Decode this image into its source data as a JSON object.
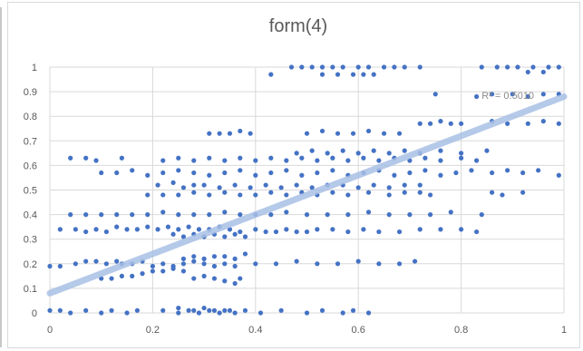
{
  "chart_data": {
    "type": "scatter",
    "title": "form(4)",
    "xlabel": "",
    "ylabel": "",
    "xlim": [
      0,
      1
    ],
    "ylim": [
      0,
      1
    ],
    "x_ticks": [
      "0",
      "0.2",
      "0.4",
      "0.6",
      "0.8",
      "1"
    ],
    "y_ticks": [
      "0",
      "0.1",
      "0.2",
      "0.3",
      "0.4",
      "0.5",
      "0.6",
      "0.7",
      "0.8",
      "0.9",
      "1"
    ],
    "grid": true,
    "legend": "none",
    "point_color": "#4472c4",
    "trendline": {
      "type": "linear",
      "color": "#a9c0e6",
      "start": [
        0,
        0.08
      ],
      "end": [
        1,
        0.88
      ],
      "label": "R² = 0.5010"
    },
    "series": [
      {
        "points": [
          [
            0.0,
            0.01
          ],
          [
            0.02,
            0.01
          ],
          [
            0.04,
            0.0
          ],
          [
            0.07,
            0.01
          ],
          [
            0.1,
            0.0
          ],
          [
            0.12,
            0.01
          ],
          [
            0.15,
            0.0
          ],
          [
            0.17,
            0.01
          ],
          [
            0.22,
            0.01
          ],
          [
            0.25,
            0.0
          ],
          [
            0.28,
            0.01
          ],
          [
            0.3,
            0.02
          ],
          [
            0.32,
            0.01
          ],
          [
            0.34,
            0.01
          ],
          [
            0.36,
            0.0
          ],
          [
            0.38,
            0.01
          ],
          [
            0.41,
            0.0
          ],
          [
            0.45,
            0.01
          ],
          [
            0.5,
            0.0
          ],
          [
            0.53,
            0.01
          ],
          [
            0.57,
            0.0
          ],
          [
            0.59,
            0.01
          ],
          [
            0.62,
            0.0
          ],
          [
            0.25,
            0.02
          ],
          [
            0.27,
            0.01
          ],
          [
            0.29,
            0.0
          ],
          [
            0.31,
            0.01
          ],
          [
            0.33,
            0.0
          ],
          [
            0.35,
            0.01
          ],
          [
            0.0,
            0.19
          ],
          [
            0.02,
            0.19
          ],
          [
            0.05,
            0.2
          ],
          [
            0.07,
            0.21
          ],
          [
            0.09,
            0.21
          ],
          [
            0.11,
            0.2
          ],
          [
            0.13,
            0.21
          ],
          [
            0.14,
            0.2
          ],
          [
            0.16,
            0.2
          ],
          [
            0.18,
            0.21
          ],
          [
            0.2,
            0.19
          ],
          [
            0.22,
            0.2
          ],
          [
            0.24,
            0.19
          ],
          [
            0.26,
            0.2
          ],
          [
            0.28,
            0.21
          ],
          [
            0.3,
            0.2
          ],
          [
            0.32,
            0.19
          ],
          [
            0.34,
            0.2
          ],
          [
            0.36,
            0.19
          ],
          [
            0.4,
            0.2
          ],
          [
            0.44,
            0.2
          ],
          [
            0.48,
            0.21
          ],
          [
            0.52,
            0.2
          ],
          [
            0.56,
            0.2
          ],
          [
            0.6,
            0.21
          ],
          [
            0.64,
            0.2
          ],
          [
            0.68,
            0.2
          ],
          [
            0.71,
            0.21
          ],
          [
            0.1,
            0.14
          ],
          [
            0.12,
            0.14
          ],
          [
            0.14,
            0.15
          ],
          [
            0.16,
            0.15
          ],
          [
            0.18,
            0.16
          ],
          [
            0.2,
            0.17
          ],
          [
            0.22,
            0.17
          ],
          [
            0.24,
            0.18
          ],
          [
            0.26,
            0.17
          ],
          [
            0.28,
            0.14
          ],
          [
            0.3,
            0.15
          ],
          [
            0.32,
            0.14
          ],
          [
            0.34,
            0.13
          ],
          [
            0.36,
            0.12
          ],
          [
            0.37,
            0.14
          ],
          [
            0.26,
            0.22
          ],
          [
            0.28,
            0.23
          ],
          [
            0.3,
            0.22
          ],
          [
            0.32,
            0.23
          ],
          [
            0.34,
            0.23
          ],
          [
            0.36,
            0.22
          ],
          [
            0.38,
            0.24
          ],
          [
            0.02,
            0.34
          ],
          [
            0.05,
            0.34
          ],
          [
            0.07,
            0.33
          ],
          [
            0.09,
            0.34
          ],
          [
            0.11,
            0.33
          ],
          [
            0.13,
            0.35
          ],
          [
            0.15,
            0.34
          ],
          [
            0.17,
            0.34
          ],
          [
            0.19,
            0.35
          ],
          [
            0.21,
            0.34
          ],
          [
            0.23,
            0.35
          ],
          [
            0.25,
            0.34
          ],
          [
            0.27,
            0.35
          ],
          [
            0.29,
            0.34
          ],
          [
            0.31,
            0.34
          ],
          [
            0.33,
            0.35
          ],
          [
            0.35,
            0.34
          ],
          [
            0.37,
            0.33
          ],
          [
            0.4,
            0.34
          ],
          [
            0.42,
            0.33
          ],
          [
            0.44,
            0.33
          ],
          [
            0.46,
            0.34
          ],
          [
            0.48,
            0.33
          ],
          [
            0.5,
            0.33
          ],
          [
            0.52,
            0.34
          ],
          [
            0.55,
            0.34
          ],
          [
            0.58,
            0.33
          ],
          [
            0.61,
            0.34
          ],
          [
            0.64,
            0.33
          ],
          [
            0.68,
            0.33
          ],
          [
            0.72,
            0.34
          ],
          [
            0.76,
            0.34
          ],
          [
            0.8,
            0.34
          ],
          [
            0.83,
            0.33
          ],
          [
            0.24,
            0.32
          ],
          [
            0.26,
            0.31
          ],
          [
            0.28,
            0.32
          ],
          [
            0.3,
            0.31
          ],
          [
            0.32,
            0.32
          ],
          [
            0.34,
            0.31
          ],
          [
            0.36,
            0.32
          ],
          [
            0.38,
            0.31
          ],
          [
            0.04,
            0.4
          ],
          [
            0.07,
            0.4
          ],
          [
            0.1,
            0.4
          ],
          [
            0.13,
            0.4
          ],
          [
            0.16,
            0.4
          ],
          [
            0.19,
            0.4
          ],
          [
            0.22,
            0.41
          ],
          [
            0.25,
            0.4
          ],
          [
            0.28,
            0.4
          ],
          [
            0.31,
            0.4
          ],
          [
            0.34,
            0.41
          ],
          [
            0.37,
            0.4
          ],
          [
            0.4,
            0.4
          ],
          [
            0.43,
            0.4
          ],
          [
            0.46,
            0.41
          ],
          [
            0.5,
            0.4
          ],
          [
            0.54,
            0.4
          ],
          [
            0.58,
            0.4
          ],
          [
            0.62,
            0.41
          ],
          [
            0.66,
            0.4
          ],
          [
            0.7,
            0.4
          ],
          [
            0.74,
            0.4
          ],
          [
            0.78,
            0.41
          ],
          [
            0.84,
            0.4
          ],
          [
            0.19,
            0.48
          ],
          [
            0.22,
            0.48
          ],
          [
            0.25,
            0.48
          ],
          [
            0.28,
            0.49
          ],
          [
            0.31,
            0.48
          ],
          [
            0.34,
            0.49
          ],
          [
            0.37,
            0.48
          ],
          [
            0.4,
            0.48
          ],
          [
            0.43,
            0.49
          ],
          [
            0.46,
            0.48
          ],
          [
            0.49,
            0.49
          ],
          [
            0.52,
            0.48
          ],
          [
            0.55,
            0.49
          ],
          [
            0.58,
            0.48
          ],
          [
            0.62,
            0.49
          ],
          [
            0.66,
            0.48
          ],
          [
            0.69,
            0.49
          ],
          [
            0.72,
            0.49
          ],
          [
            0.74,
            0.48
          ],
          [
            0.86,
            0.49
          ],
          [
            0.88,
            0.48
          ],
          [
            0.92,
            0.49
          ],
          [
            0.21,
            0.52
          ],
          [
            0.24,
            0.53
          ],
          [
            0.26,
            0.51
          ],
          [
            0.28,
            0.52
          ],
          [
            0.3,
            0.52
          ],
          [
            0.33,
            0.51
          ],
          [
            0.36,
            0.52
          ],
          [
            0.39,
            0.51
          ],
          [
            0.42,
            0.52
          ],
          [
            0.45,
            0.51
          ],
          [
            0.48,
            0.52
          ],
          [
            0.51,
            0.51
          ],
          [
            0.54,
            0.52
          ],
          [
            0.57,
            0.52
          ],
          [
            0.6,
            0.51
          ],
          [
            0.63,
            0.52
          ],
          [
            0.66,
            0.51
          ],
          [
            0.69,
            0.52
          ],
          [
            0.72,
            0.52
          ],
          [
            0.1,
            0.57
          ],
          [
            0.13,
            0.57
          ],
          [
            0.16,
            0.58
          ],
          [
            0.19,
            0.56
          ],
          [
            0.22,
            0.57
          ],
          [
            0.25,
            0.58
          ],
          [
            0.28,
            0.57
          ],
          [
            0.31,
            0.56
          ],
          [
            0.34,
            0.57
          ],
          [
            0.37,
            0.58
          ],
          [
            0.4,
            0.56
          ],
          [
            0.43,
            0.57
          ],
          [
            0.46,
            0.58
          ],
          [
            0.49,
            0.56
          ],
          [
            0.52,
            0.57
          ],
          [
            0.55,
            0.58
          ],
          [
            0.58,
            0.56
          ],
          [
            0.61,
            0.57
          ],
          [
            0.64,
            0.58
          ],
          [
            0.67,
            0.56
          ],
          [
            0.7,
            0.57
          ],
          [
            0.73,
            0.58
          ],
          [
            0.76,
            0.56
          ],
          [
            0.79,
            0.57
          ],
          [
            0.82,
            0.58
          ],
          [
            0.86,
            0.57
          ],
          [
            0.89,
            0.58
          ],
          [
            0.92,
            0.57
          ],
          [
            0.95,
            0.58
          ],
          [
            0.99,
            0.56
          ],
          [
            0.04,
            0.63
          ],
          [
            0.07,
            0.63
          ],
          [
            0.09,
            0.62
          ],
          [
            0.14,
            0.63
          ],
          [
            0.22,
            0.62
          ],
          [
            0.25,
            0.63
          ],
          [
            0.28,
            0.62
          ],
          [
            0.31,
            0.63
          ],
          [
            0.34,
            0.62
          ],
          [
            0.37,
            0.63
          ],
          [
            0.4,
            0.62
          ],
          [
            0.43,
            0.63
          ],
          [
            0.46,
            0.62
          ],
          [
            0.49,
            0.63
          ],
          [
            0.52,
            0.62
          ],
          [
            0.55,
            0.63
          ],
          [
            0.58,
            0.62
          ],
          [
            0.61,
            0.63
          ],
          [
            0.64,
            0.62
          ],
          [
            0.67,
            0.63
          ],
          [
            0.7,
            0.62
          ],
          [
            0.73,
            0.63
          ],
          [
            0.76,
            0.62
          ],
          [
            0.8,
            0.63
          ],
          [
            0.83,
            0.62
          ],
          [
            0.48,
            0.65
          ],
          [
            0.51,
            0.66
          ],
          [
            0.54,
            0.65
          ],
          [
            0.57,
            0.66
          ],
          [
            0.6,
            0.65
          ],
          [
            0.63,
            0.66
          ],
          [
            0.66,
            0.65
          ],
          [
            0.69,
            0.66
          ],
          [
            0.72,
            0.65
          ],
          [
            0.76,
            0.66
          ],
          [
            0.8,
            0.65
          ],
          [
            0.85,
            0.66
          ],
          [
            0.31,
            0.73
          ],
          [
            0.33,
            0.73
          ],
          [
            0.35,
            0.73
          ],
          [
            0.37,
            0.74
          ],
          [
            0.39,
            0.73
          ],
          [
            0.5,
            0.73
          ],
          [
            0.53,
            0.74
          ],
          [
            0.56,
            0.73
          ],
          [
            0.59,
            0.73
          ],
          [
            0.62,
            0.74
          ],
          [
            0.65,
            0.73
          ],
          [
            0.68,
            0.73
          ],
          [
            0.72,
            0.77
          ],
          [
            0.74,
            0.77
          ],
          [
            0.76,
            0.78
          ],
          [
            0.78,
            0.77
          ],
          [
            0.8,
            0.77
          ],
          [
            0.86,
            0.78
          ],
          [
            0.89,
            0.77
          ],
          [
            0.93,
            0.77
          ],
          [
            0.96,
            0.78
          ],
          [
            0.99,
            0.77
          ],
          [
            0.75,
            0.89
          ],
          [
            0.83,
            0.88
          ],
          [
            0.86,
            0.89
          ],
          [
            0.9,
            0.89
          ],
          [
            0.93,
            0.88
          ],
          [
            0.96,
            0.89
          ],
          [
            0.99,
            0.89
          ],
          [
            0.43,
            0.97
          ],
          [
            0.53,
            0.97
          ],
          [
            0.56,
            0.97
          ],
          [
            0.59,
            0.97
          ],
          [
            0.61,
            0.97
          ],
          [
            0.63,
            0.97
          ],
          [
            0.93,
            0.98
          ],
          [
            0.96,
            0.98
          ],
          [
            0.47,
            1.0
          ],
          [
            0.49,
            1.0
          ],
          [
            0.51,
            1.0
          ],
          [
            0.53,
            1.0
          ],
          [
            0.55,
            1.0
          ],
          [
            0.57,
            1.0
          ],
          [
            0.6,
            1.0
          ],
          [
            0.62,
            1.0
          ],
          [
            0.65,
            1.0
          ],
          [
            0.67,
            1.0
          ],
          [
            0.69,
            1.0
          ],
          [
            0.72,
            1.0
          ],
          [
            0.84,
            1.0
          ],
          [
            0.87,
            1.0
          ],
          [
            0.89,
            1.0
          ],
          [
            0.91,
            1.0
          ],
          [
            0.94,
            1.0
          ],
          [
            0.97,
            1.0
          ],
          [
            0.99,
            1.0
          ]
        ]
      }
    ]
  }
}
